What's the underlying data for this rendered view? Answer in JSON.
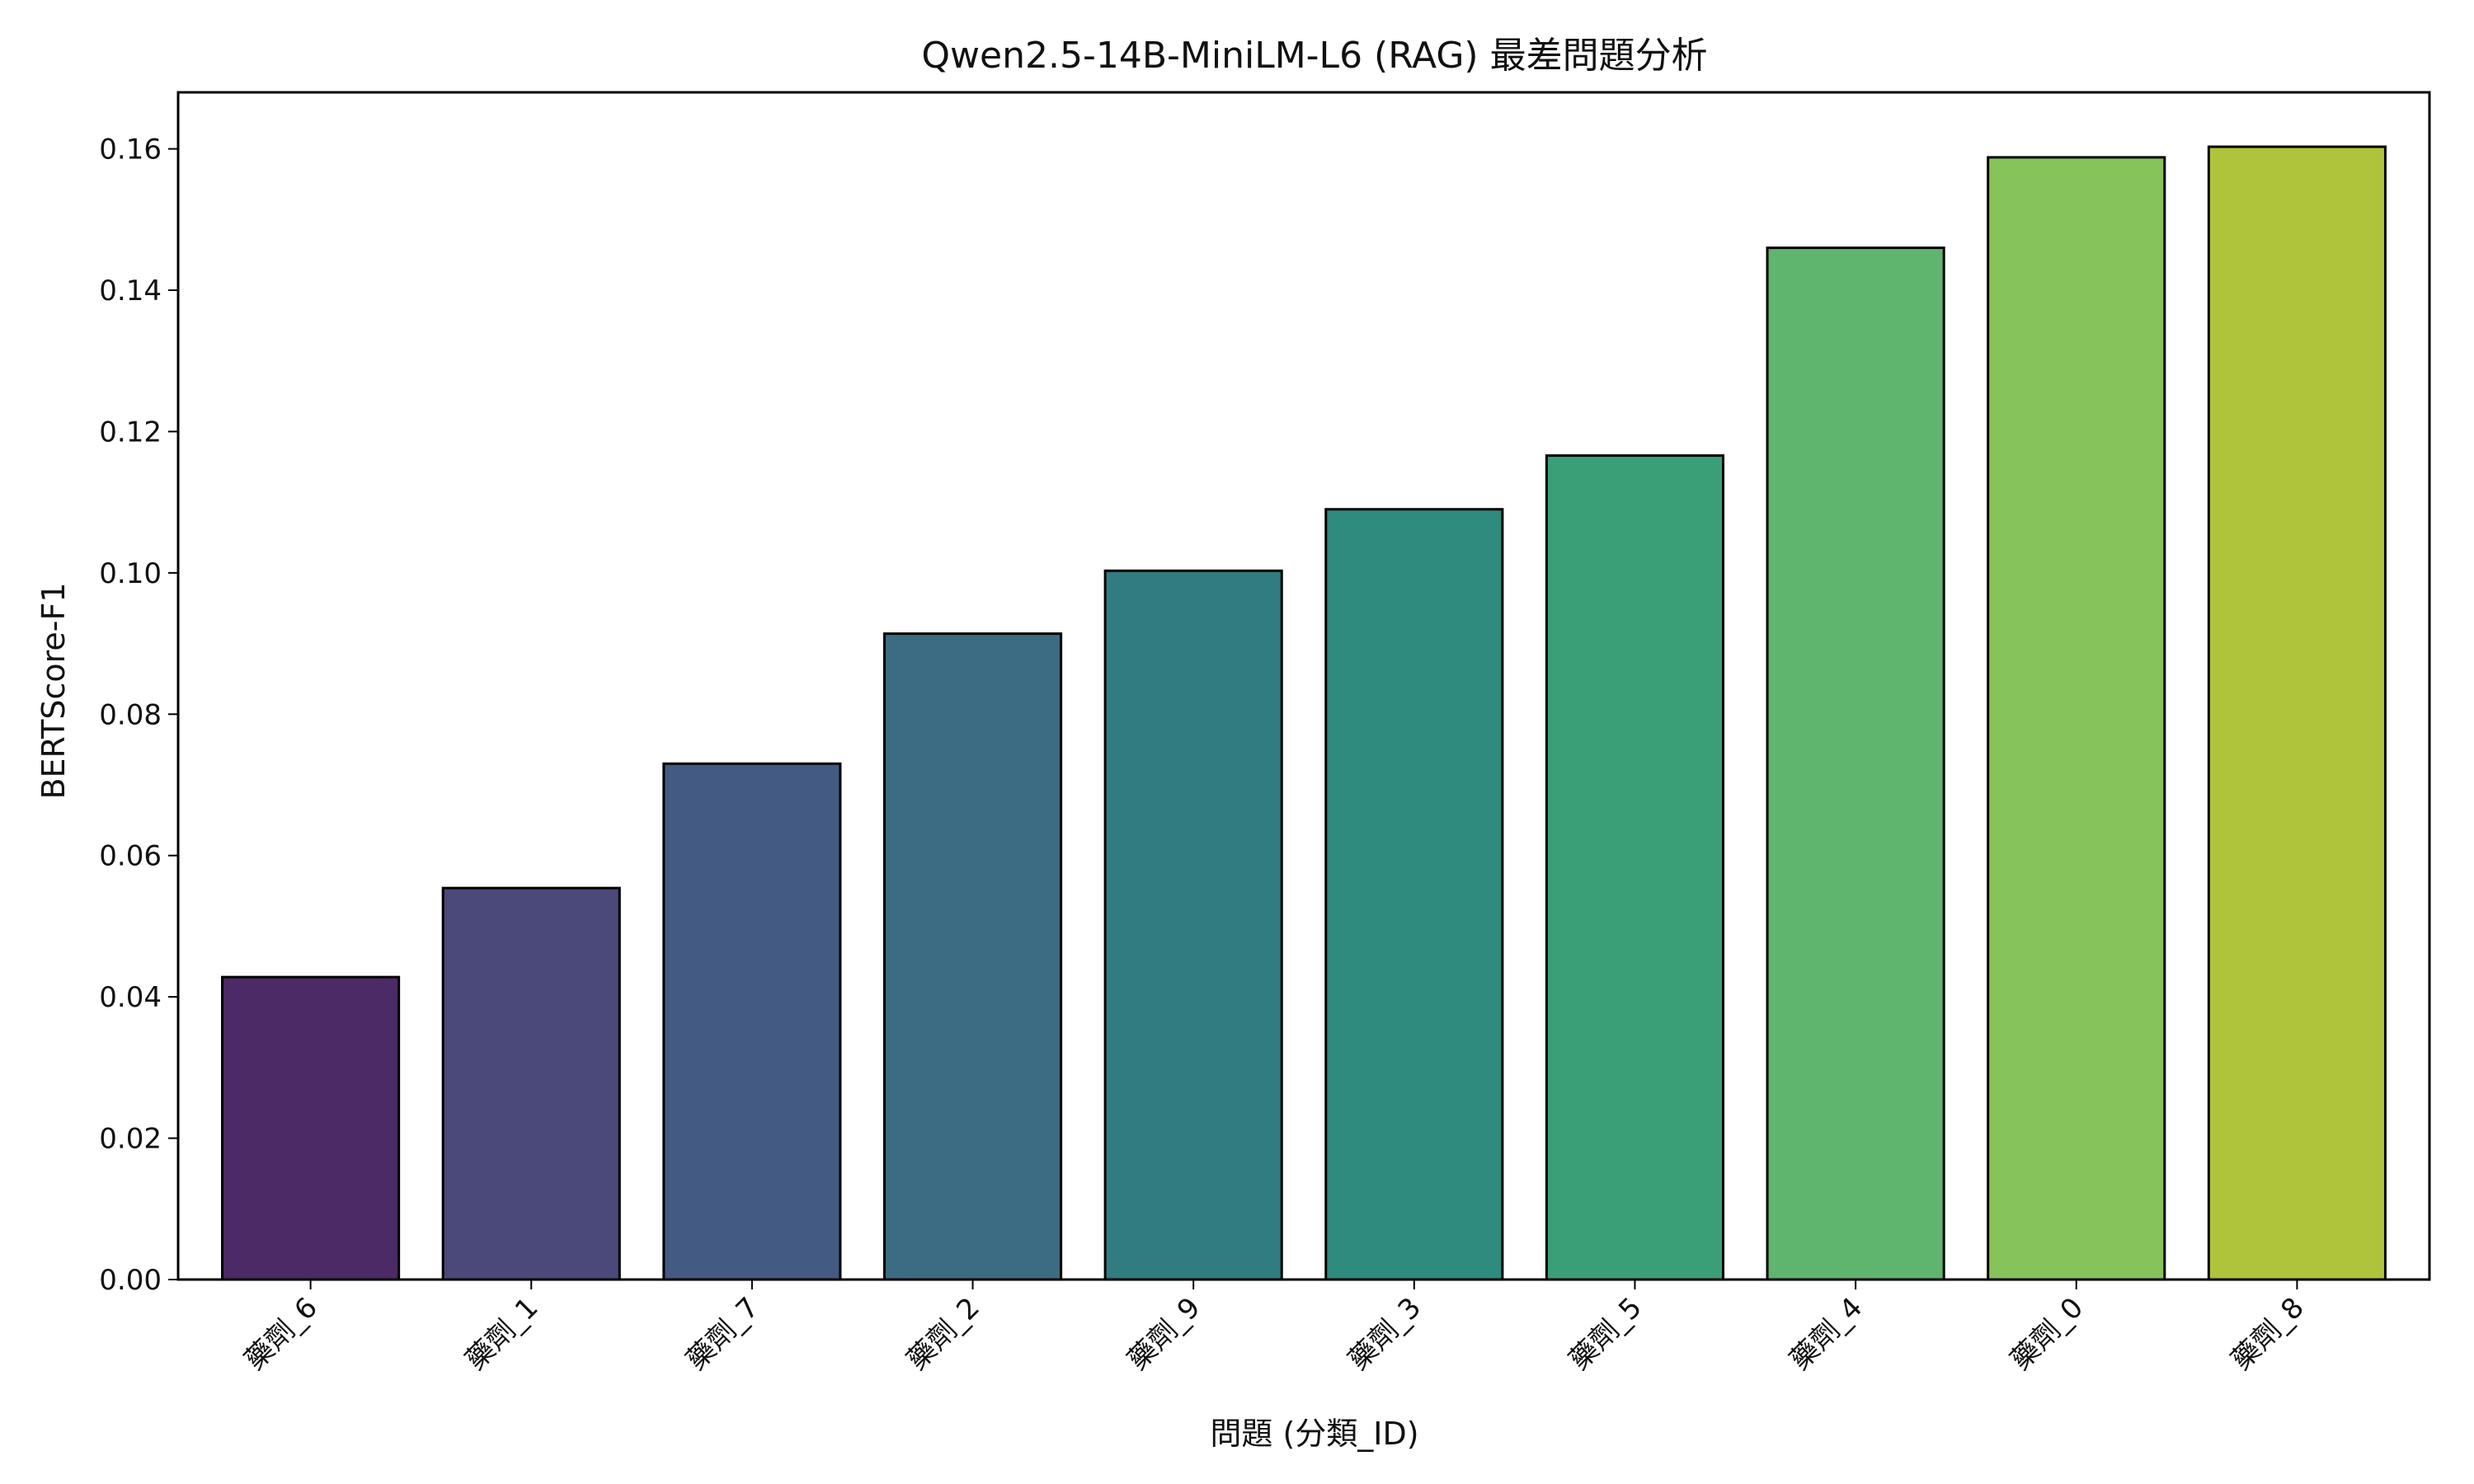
{
  "chart_data": {
    "type": "bar",
    "title": "Qwen2.5-14B-MiniLM-L6 (RAG) 最差問題分析",
    "xlabel": "問題 (分類_ID)",
    "ylabel": "BERTScore-F1",
    "categories": [
      "藥劑_6",
      "藥劑_1",
      "藥劑_7",
      "藥劑_2",
      "藥劑_9",
      "藥劑_3",
      "藥劑_5",
      "藥劑_4",
      "藥劑_0",
      "藥劑_8"
    ],
    "values": [
      0.0428,
      0.0554,
      0.073,
      0.0914,
      0.1003,
      0.109,
      0.1166,
      0.146,
      0.1588,
      0.1603
    ],
    "colors": [
      "#4b2a66",
      "#4b487a",
      "#435a82",
      "#3c6b84",
      "#307c80",
      "#2e8b7d",
      "#3a9f77",
      "#5fb46e",
      "#86c35a",
      "#afc43a"
    ],
    "ylim": [
      0,
      0.168
    ],
    "yticks": [
      "0.00",
      "0.02",
      "0.04",
      "0.06",
      "0.08",
      "0.10",
      "0.12",
      "0.14",
      "0.16"
    ],
    "grid": false,
    "legend": "none"
  }
}
